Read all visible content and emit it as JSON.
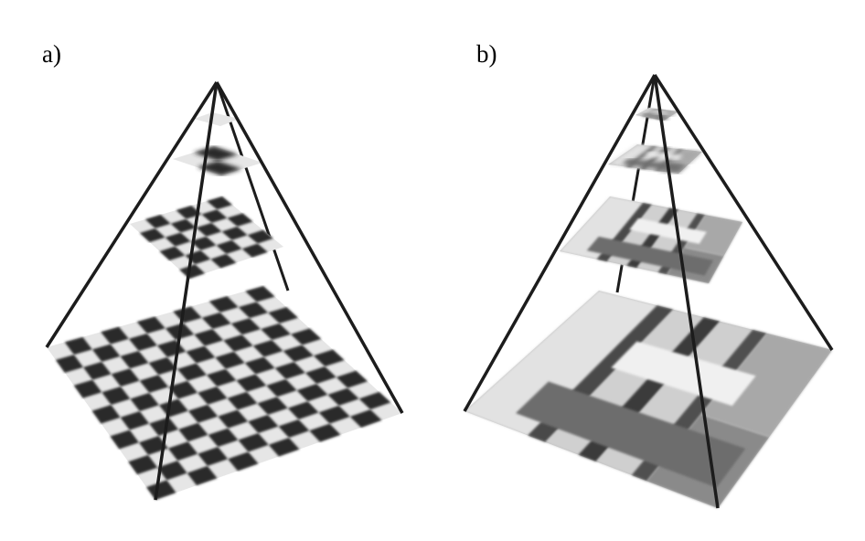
{
  "panels": [
    {
      "label": "a)",
      "content": "checkerboard",
      "levels": 4
    },
    {
      "label": "b)",
      "content": "photograph",
      "levels": 4
    }
  ],
  "colors": {
    "frame_line": "#1c1c1c",
    "dark_square": "#2b2b2b",
    "light_square": "#e6e6e6",
    "background": "#ffffff"
  }
}
